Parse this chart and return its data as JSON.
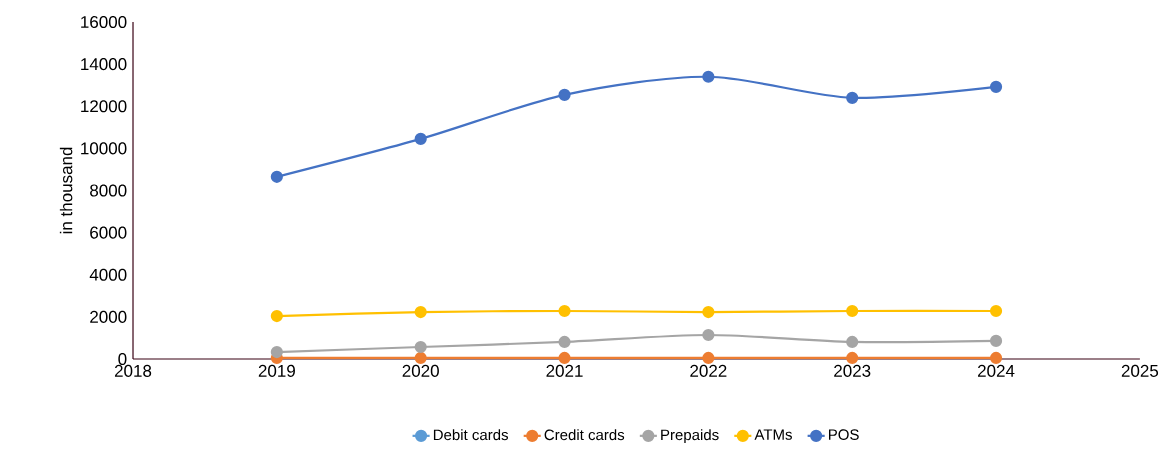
{
  "chart_data": {
    "type": "line",
    "ylabel": "in thousand",
    "x": [
      2019,
      2020,
      2021,
      2022,
      2023,
      2024
    ],
    "xlim": [
      2018,
      2025
    ],
    "xticks": [
      2018,
      2019,
      2020,
      2021,
      2022,
      2023,
      2024,
      2025
    ],
    "ylim": [
      0,
      16000
    ],
    "yticks": [
      0,
      2000,
      4000,
      6000,
      8000,
      10000,
      12000,
      14000,
      16000
    ],
    "grid": false,
    "legend": "bottom",
    "marker": "circle",
    "line_style": "solid",
    "series": [
      {
        "name": "Debit cards",
        "color": "#5b9bd5",
        "values": [
          null,
          null,
          null,
          null,
          null,
          null
        ]
      },
      {
        "name": "Credit cards",
        "color": "#ed7d31",
        "values": [
          50,
          50,
          50,
          50,
          50,
          50
        ]
      },
      {
        "name": "Prepaids",
        "color": "#a5a5a5",
        "values": [
          330,
          570,
          810,
          1140,
          810,
          860
        ]
      },
      {
        "name": "ATMs",
        "color": "#ffc000",
        "values": [
          2040,
          2230,
          2280,
          2230,
          2280,
          2280
        ]
      },
      {
        "name": "POS",
        "color": "#4472c4",
        "values": [
          8650,
          10450,
          12540,
          13400,
          12400,
          12920
        ]
      }
    ]
  }
}
